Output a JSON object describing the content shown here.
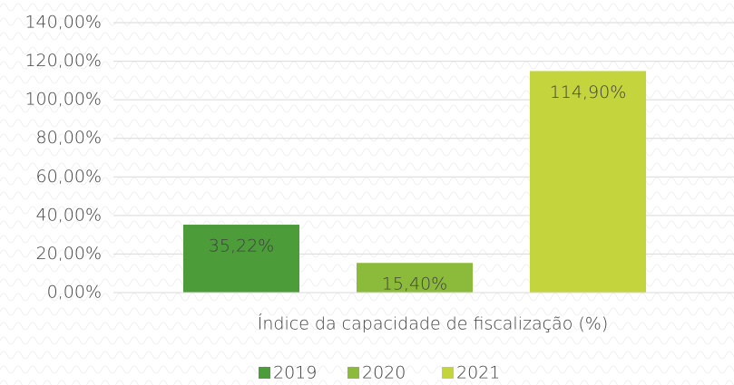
{
  "chart_data": {
    "type": "bar",
    "categories": [
      "Índice da capacidade de fiscalização (%)"
    ],
    "series": [
      {
        "name": "2019",
        "color": "#4c9c3a",
        "values": [
          35.22
        ],
        "value_labels": [
          "35,22%"
        ]
      },
      {
        "name": "2020",
        "color": "#8cbb3b",
        "values": [
          15.4
        ],
        "value_labels": [
          "15,40%"
        ]
      },
      {
        "name": "2021",
        "color": "#c3d43c",
        "values": [
          114.9
        ],
        "value_labels": [
          "114,90%"
        ]
      }
    ],
    "ylim": [
      0,
      140
    ],
    "yticks": [
      {
        "value": 0,
        "label": "0,00%"
      },
      {
        "value": 20,
        "label": "20,00%"
      },
      {
        "value": 40,
        "label": "40,00%"
      },
      {
        "value": 60,
        "label": "60,00%"
      },
      {
        "value": 80,
        "label": "80,00%"
      },
      {
        "value": 100,
        "label": "100,00%"
      },
      {
        "value": 120,
        "label": "120,00%"
      },
      {
        "value": 140,
        "label": "140,00%"
      }
    ],
    "grid": true,
    "legend": "bottom"
  }
}
